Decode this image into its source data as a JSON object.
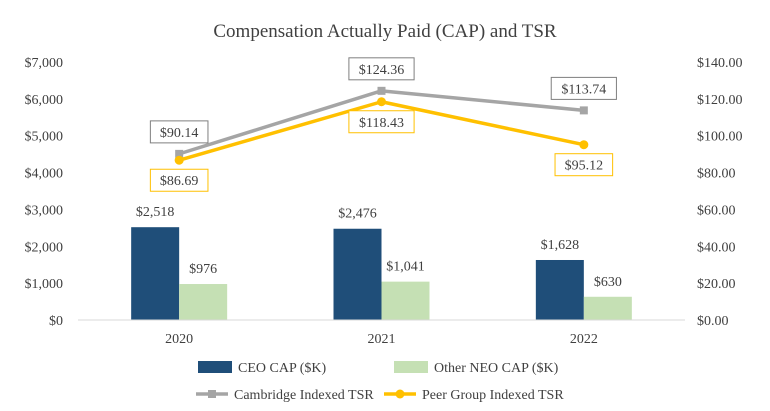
{
  "chart_data": {
    "type": "bar+line",
    "title": "Compensation Actually Paid (CAP) and TSR",
    "categories": [
      "2020",
      "2021",
      "2022"
    ],
    "left_axis": {
      "ylim": [
        0,
        7000
      ],
      "ticks": [
        {
          "value": 0,
          "label": "$0"
        },
        {
          "value": 1000,
          "label": "$1,000"
        },
        {
          "value": 2000,
          "label": "$2,000"
        },
        {
          "value": 3000,
          "label": "$3,000"
        },
        {
          "value": 4000,
          "label": "$4,000"
        },
        {
          "value": 5000,
          "label": "$5,000"
        },
        {
          "value": 6000,
          "label": "$6,000"
        },
        {
          "value": 7000,
          "label": "$7,000"
        }
      ]
    },
    "right_axis": {
      "ylim": [
        0,
        140
      ],
      "ticks": [
        {
          "value": 0,
          "label": "$0.00"
        },
        {
          "value": 20,
          "label": "$20.00"
        },
        {
          "value": 40,
          "label": "$40.00"
        },
        {
          "value": 60,
          "label": "$60.00"
        },
        {
          "value": 80,
          "label": "$80.00"
        },
        {
          "value": 100,
          "label": "$100.00"
        },
        {
          "value": 120,
          "label": "$120.00"
        },
        {
          "value": 140,
          "label": "$140.00"
        }
      ]
    },
    "bar_series": [
      {
        "name": "CEO CAP ($K)",
        "color": "#1f4e79",
        "values": [
          2518,
          2476,
          1628
        ],
        "labels": [
          "$2,518",
          "$2,476",
          "$1,628"
        ]
      },
      {
        "name": "Other NEO CAP ($K)",
        "color": "#c5e0b4",
        "values": [
          976,
          1041,
          630
        ],
        "labels": [
          "$976",
          "$1,041",
          "$630"
        ]
      }
    ],
    "line_series": [
      {
        "name": "Cambridge Indexed TSR",
        "color": "#a5a5a5",
        "marker": "square",
        "values": [
          90.14,
          124.36,
          113.74
        ],
        "labels": [
          "$90.14",
          "$124.36",
          "$113.74"
        ],
        "label_position": "above",
        "box_border": "#7f7f7f"
      },
      {
        "name": "Peer Group Indexed TSR",
        "color": "#ffc000",
        "marker": "circle",
        "values": [
          86.69,
          118.43,
          95.12
        ],
        "labels": [
          "$86.69",
          "$118.43",
          "$95.12"
        ],
        "label_position": "below",
        "box_border": "#ffc000"
      }
    ],
    "grid": false,
    "legend_position": "bottom"
  }
}
